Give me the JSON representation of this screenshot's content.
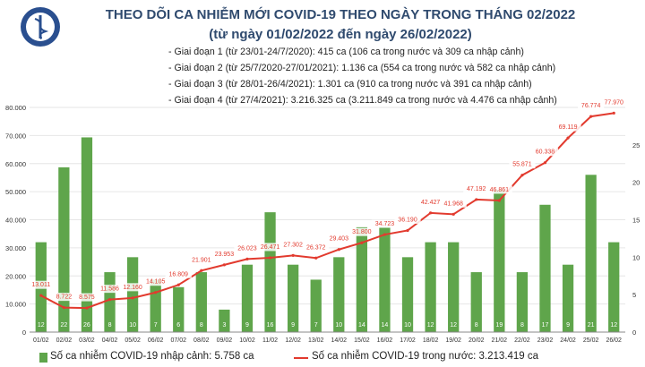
{
  "header": {
    "title_line1": "THEO DÕI CA NHIỄM MỚI COVID-19 THEO NGÀY TRONG THÁNG 02/2022",
    "title_line2": "(từ ngày 01/02/2022 đến ngày 26/02/2022)",
    "stages": [
      "- Giai đoạn 1 (từ 23/01-24/7/2020): 415 ca (106 ca trong nước và 309 ca nhập cảnh)",
      "- Giai đoạn 2 (từ 25/7/2020-27/01/2021): 1.136 ca (554 ca trong nước và 582 ca nhập cảnh)",
      "- Giai đoạn 3 (từ 28/01-26/4/2021): 1.301 ca (910 ca trong nước và 391 ca nhập cảnh)",
      "- Giai đoạn 4 (từ 27/4/2021): 3.216.325 ca (3.211.849 ca trong nước và 4.476 ca nhập cảnh)"
    ]
  },
  "colors": {
    "bars": "#5fa54b",
    "line": "#e23a2e",
    "title": "#2f4a6e",
    "logo": "#2a4f8f"
  },
  "chart_data": {
    "type": "bar+line",
    "categories": [
      "01/02",
      "02/02",
      "03/02",
      "04/02",
      "05/02",
      "06/02",
      "07/02",
      "08/02",
      "09/02",
      "10/02",
      "11/02",
      "12/02",
      "13/02",
      "14/02",
      "15/02",
      "16/02",
      "17/02",
      "18/02",
      "19/02",
      "20/02",
      "21/02",
      "22/02",
      "23/02",
      "24/02",
      "25/02",
      "26/02"
    ],
    "left_axis": {
      "min": 0,
      "max": 80000,
      "step": 10000,
      "tick_labels": [
        "0",
        "10.000",
        "20.000",
        "30.000",
        "40.000",
        "50.000",
        "60.000",
        "70.000",
        "80.000"
      ]
    },
    "right_axis": {
      "min": 0,
      "max": 30,
      "step": 5,
      "tick_labels": [
        "0",
        "5",
        "10",
        "15",
        "20",
        "25"
      ]
    },
    "series": [
      {
        "name": "Số ca nhiễm COVID-19 nhập cảnh: 5.758 ca",
        "type": "bar",
        "axis": "right",
        "values": [
          12,
          22,
          26,
          8,
          10,
          7,
          6,
          8,
          3,
          9,
          16,
          9,
          7,
          10,
          14,
          14,
          10,
          12,
          12,
          8,
          19,
          8,
          17,
          9,
          21,
          12
        ],
        "labels": [
          "12",
          "22",
          "26",
          "8",
          "10",
          "7",
          "6",
          "8",
          "3",
          "9",
          "16",
          "9",
          "7",
          "10",
          "14",
          "14",
          "10",
          "12",
          "12",
          "8",
          "19",
          "8",
          "17",
          "9",
          "21",
          "12"
        ]
      },
      {
        "name": "Số ca nhiễm COVID-19 trong nước: 3.213.419 ca",
        "type": "line",
        "axis": "left",
        "values": [
          13011,
          8722,
          8575,
          11586,
          12160,
          14105,
          16809,
          21901,
          23953,
          26023,
          26471,
          27302,
          26372,
          29403,
          31800,
          34723,
          36190,
          42427,
          41968,
          47192,
          46861,
          55871,
          60338,
          69119,
          76774,
          77970
        ],
        "labels": [
          "13.011",
          "8.722",
          "8.575",
          "11.586",
          "12.160",
          "14.105",
          "16.809",
          "21.901",
          "23.953",
          "26.023",
          "26.471",
          "27.302",
          "26.372",
          "29.403",
          "31.800",
          "34.723",
          "36.190",
          "42.427",
          "41.968",
          "47.192",
          "46.861",
          "55.871",
          "60.338",
          "69.119",
          "76.774",
          "77.970"
        ]
      }
    ],
    "grid": true,
    "legend_position": "bottom"
  }
}
